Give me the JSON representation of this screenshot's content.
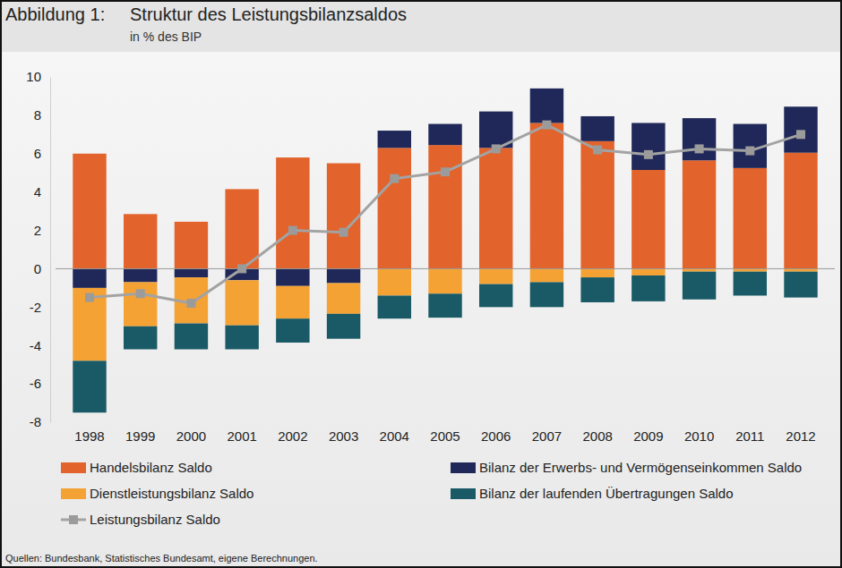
{
  "chart_data": {
    "type": "bar",
    "stacked": true,
    "figure_label": "Abbildung 1:",
    "title": "Struktur des Leistungsbilanzsaldos",
    "subtitle": "in % des BIP",
    "source": "Quellen: Bundesbank, Statistisches Bundesamt, eigene Berechnungen.",
    "categories": [
      "1998",
      "1999",
      "2000",
      "2001",
      "2002",
      "2003",
      "2004",
      "2005",
      "2006",
      "2007",
      "2008",
      "2009",
      "2010",
      "2011",
      "2012"
    ],
    "ylim": [
      -8,
      10
    ],
    "yticks": [
      -8,
      -6,
      -4,
      -2,
      0,
      2,
      4,
      6,
      8,
      10
    ],
    "grid": false,
    "legend": "bottom",
    "series": [
      {
        "name": "Handelsbilanz Saldo",
        "type": "bar",
        "color": "#e2632b",
        "values": [
          6.0,
          2.85,
          2.45,
          4.15,
          5.8,
          5.5,
          6.3,
          6.45,
          6.3,
          7.6,
          6.65,
          5.15,
          5.65,
          5.25,
          6.05
        ]
      },
      {
        "name": "Bilanz der Erwerbs- und Vermögenseinkommen Saldo",
        "type": "bar",
        "color": "#1f2858",
        "values": [
          -1.0,
          -0.7,
          -0.45,
          -0.6,
          -0.9,
          -0.75,
          0.9,
          1.1,
          1.9,
          1.8,
          1.3,
          2.45,
          2.2,
          2.3,
          2.4
        ]
      },
      {
        "name": "Dienstleistungsbilanz Saldo",
        "type": "bar",
        "color": "#f5a234",
        "values": [
          -3.8,
          -2.3,
          -2.4,
          -2.35,
          -1.7,
          -1.6,
          -1.4,
          -1.3,
          -0.8,
          -0.7,
          -0.45,
          -0.35,
          -0.15,
          -0.15,
          -0.15
        ]
      },
      {
        "name": "Bilanz der laufenden Übertragungen Saldo",
        "type": "bar",
        "color": "#195a66",
        "values": [
          -2.7,
          -1.2,
          -1.35,
          -1.25,
          -1.25,
          -1.3,
          -1.2,
          -1.25,
          -1.2,
          -1.3,
          -1.3,
          -1.35,
          -1.45,
          -1.25,
          -1.35
        ]
      },
      {
        "name": "Leistungsbilanz Saldo",
        "type": "line",
        "color": "#a3a3a3",
        "marker": "square",
        "line_style": "solid",
        "values": [
          -1.5,
          -1.3,
          -1.8,
          0.0,
          2.0,
          1.9,
          4.7,
          5.05,
          6.25,
          7.5,
          6.2,
          5.95,
          6.25,
          6.15,
          7.0
        ]
      }
    ]
  }
}
